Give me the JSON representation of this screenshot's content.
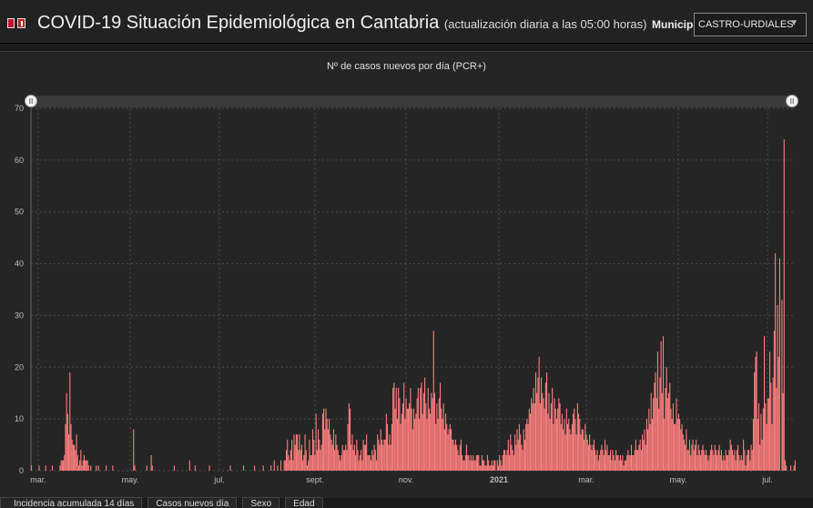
{
  "header": {
    "title": "COVID-19 Situación Epidemiológica en Cantabria",
    "subtitle": "(actualización diaria a las 05:00 horas)",
    "municipality_label": "Municipio",
    "municipality_value": "CASTRO-URDIALES"
  },
  "chart": {
    "title": "Nº de casos nuevos por día (PCR+)"
  },
  "tabs": [
    "Incidencia acumulada 14 días",
    "Casos nuevos día",
    "Sexo",
    "Edad"
  ],
  "colors": {
    "bar": "#ff7f7f",
    "background": "#252525",
    "grid": "#4a4a4a"
  },
  "chart_data": {
    "type": "bar",
    "title": "Nº de casos nuevos por día (PCR+)",
    "ylim": [
      0,
      70
    ],
    "y_ticks": [
      0,
      10,
      20,
      30,
      40,
      50,
      60,
      70
    ],
    "x_tick_labels": [
      "mar.",
      "may.",
      "jul.",
      "sept.",
      "nov.",
      "2021",
      "mar.",
      "may.",
      "jul."
    ],
    "grid": true,
    "bar_color": "#ff7f7f",
    "values": [
      1,
      0,
      0,
      0,
      0,
      0,
      0,
      1,
      0,
      0,
      0,
      0,
      0,
      1,
      0,
      0,
      0,
      0,
      0,
      1,
      0,
      0,
      0,
      0,
      0,
      0,
      1,
      2,
      2,
      2,
      3,
      9,
      15,
      11,
      7,
      19,
      9,
      6,
      5,
      5,
      4,
      7,
      3,
      1,
      2,
      4,
      1,
      2,
      3,
      2,
      2,
      2,
      1,
      0,
      1,
      0,
      0,
      0,
      0,
      1,
      0,
      1,
      0,
      0,
      0,
      0,
      0,
      0,
      1,
      0,
      0,
      0,
      0,
      0,
      1,
      0,
      0,
      0,
      0,
      0,
      0,
      0,
      0,
      0,
      0,
      0,
      0,
      0,
      0,
      0,
      0,
      0,
      0,
      8,
      1,
      0,
      0,
      0,
      0,
      0,
      0,
      0,
      0,
      0,
      0,
      1,
      0,
      0,
      0,
      3,
      1,
      0,
      0,
      0,
      0,
      0,
      0,
      0,
      0,
      0,
      0,
      0,
      0,
      0,
      0,
      0,
      0,
      0,
      0,
      0,
      1,
      0,
      0,
      0,
      0,
      0,
      0,
      0,
      0,
      0,
      0,
      0,
      0,
      0,
      2,
      0,
      0,
      0,
      0,
      1,
      0,
      0,
      0,
      0,
      0,
      0,
      0,
      0,
      0,
      0,
      0,
      0,
      1,
      0,
      0,
      0,
      0,
      0,
      0,
      0,
      0,
      0,
      0,
      0,
      0,
      0,
      0,
      0,
      0,
      0,
      0,
      1,
      0,
      0,
      0,
      0,
      0,
      0,
      0,
      0,
      0,
      0,
      0,
      1,
      0,
      0,
      0,
      0,
      0,
      0,
      0,
      0,
      0,
      1,
      0,
      0,
      0,
      0,
      0,
      0,
      0,
      1,
      0,
      0,
      0,
      0,
      0,
      0,
      1,
      0,
      0,
      2,
      0,
      0,
      1,
      0,
      0,
      2,
      0,
      0,
      2,
      2,
      4,
      6,
      3,
      2,
      4,
      6,
      2,
      7,
      5,
      7,
      7,
      4,
      7,
      4,
      5,
      2,
      3,
      7,
      4,
      1,
      2,
      6,
      3,
      3,
      8,
      6,
      3,
      11,
      4,
      8,
      6,
      4,
      5,
      11,
      12,
      8,
      12,
      10,
      8,
      10,
      7,
      6,
      5,
      8,
      4,
      7,
      5,
      4,
      3,
      2,
      3,
      5,
      4,
      4,
      5,
      4,
      9,
      13,
      12,
      5,
      7,
      4,
      5,
      3,
      6,
      4,
      2,
      3,
      4,
      2,
      6,
      5,
      5,
      7,
      3,
      3,
      3,
      2,
      4,
      3,
      5,
      4,
      2,
      7,
      6,
      5,
      8,
      6,
      5,
      6,
      6,
      11,
      9,
      5,
      7,
      5,
      9,
      16,
      17,
      12,
      16,
      10,
      16,
      14,
      9,
      11,
      13,
      17,
      10,
      14,
      12,
      12,
      13,
      16,
      12,
      8,
      12,
      10,
      11,
      14,
      16,
      10,
      16,
      17,
      11,
      15,
      18,
      13,
      10,
      16,
      12,
      11,
      15,
      14,
      27,
      15,
      9,
      13,
      10,
      14,
      17,
      12,
      10,
      13,
      8,
      11,
      9,
      7,
      8,
      9,
      8,
      6,
      6,
      5,
      6,
      5,
      4,
      3,
      5,
      6,
      3,
      2,
      2,
      3,
      5,
      3,
      3,
      2,
      3,
      2,
      3,
      2,
      2,
      3,
      3,
      3,
      1,
      1,
      3,
      2,
      2,
      1,
      1,
      3,
      2,
      1,
      1,
      2,
      1,
      2,
      2,
      0,
      2,
      1,
      3,
      2,
      1,
      3,
      4,
      4,
      3,
      4,
      6,
      3,
      7,
      5,
      4,
      3,
      7,
      5,
      8,
      6,
      9,
      7,
      5,
      4,
      8,
      6,
      9,
      10,
      9,
      12,
      11,
      14,
      13,
      16,
      13,
      19,
      15,
      18,
      22,
      13,
      18,
      15,
      14,
      12,
      17,
      19,
      11,
      15,
      10,
      13,
      16,
      9,
      14,
      12,
      10,
      12,
      14,
      13,
      9,
      11,
      8,
      10,
      7,
      12,
      9,
      10,
      8,
      7,
      9,
      11,
      12,
      10,
      7,
      13,
      11,
      10,
      7,
      8,
      8,
      6,
      9,
      7,
      6,
      5,
      7,
      5,
      4,
      5,
      6,
      4,
      3,
      4,
      2,
      3,
      4,
      5,
      4,
      3,
      6,
      4,
      5,
      3,
      3,
      4,
      2,
      4,
      3,
      2,
      4,
      3,
      3,
      2,
      3,
      2,
      3,
      1,
      2,
      2,
      3,
      4,
      3,
      3,
      5,
      3,
      3,
      4,
      6,
      4,
      4,
      5,
      6,
      4,
      7,
      6,
      8,
      5,
      10,
      8,
      12,
      9,
      15,
      10,
      14,
      17,
      19,
      14,
      23,
      12,
      18,
      25,
      15,
      26,
      10,
      16,
      20,
      14,
      15,
      17,
      12,
      10,
      13,
      9,
      9,
      14,
      10,
      11,
      10,
      8,
      9,
      7,
      6,
      5,
      8,
      4,
      4,
      6,
      3,
      5,
      6,
      4,
      5,
      6,
      3,
      5,
      4,
      3,
      4,
      5,
      4,
      3,
      4,
      3,
      2,
      3,
      4,
      5,
      4,
      3,
      5,
      4,
      3,
      4,
      5,
      3,
      4,
      2,
      3,
      2,
      4,
      3,
      3,
      4,
      6,
      5,
      4,
      3,
      4,
      2,
      4,
      5,
      3,
      2,
      3,
      2,
      6,
      4,
      1,
      3,
      4,
      4,
      2,
      5,
      4,
      10,
      19,
      22,
      23,
      10,
      13,
      5,
      11,
      6,
      12,
      26,
      13,
      9,
      14,
      14,
      23,
      17,
      9,
      18,
      27,
      42,
      16,
      32,
      22,
      41,
      0,
      33,
      15,
      64,
      2,
      1,
      0,
      0,
      0,
      1,
      0,
      0,
      1,
      2
    ]
  }
}
